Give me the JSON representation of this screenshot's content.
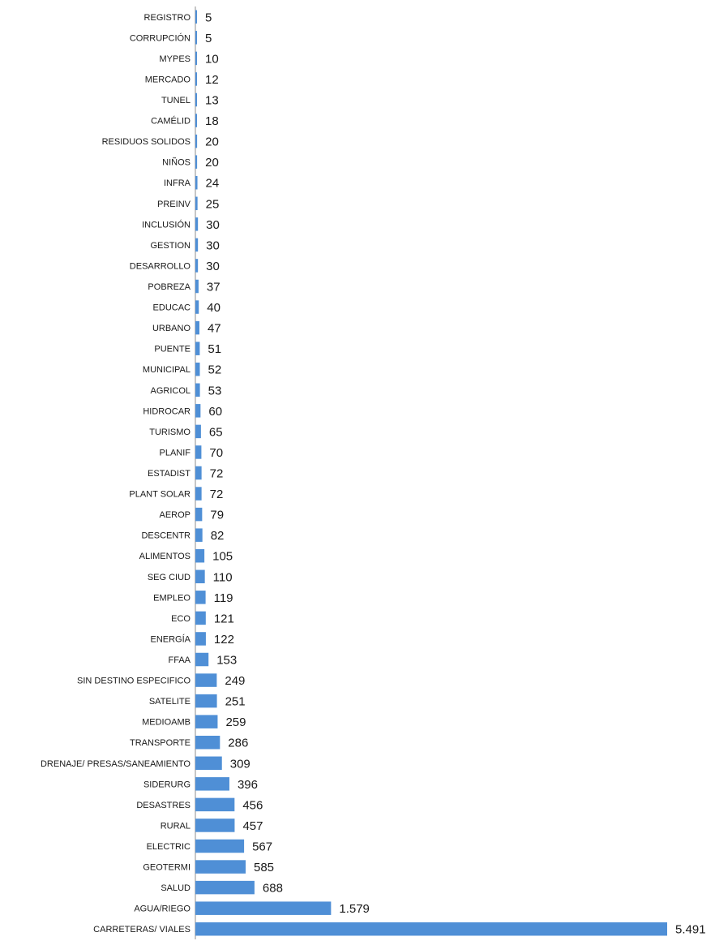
{
  "chart_data": {
    "type": "bar",
    "orientation": "horizontal",
    "title": "",
    "xlabel": "",
    "ylabel": "",
    "grid": false,
    "legend": "none",
    "bar_color": "#4f8fd6",
    "xlim": [
      0,
      5491
    ],
    "categories": [
      "REGISTRO",
      "CORRUPCIÓN",
      "MYPES",
      "MERCADO",
      "TUNEL",
      "CAMÉLID",
      "RESIDUOS SOLIDOS",
      "NIÑOS",
      "INFRA",
      "PREINV",
      "INCLUSIÓN",
      "GESTION",
      "DESARROLLO",
      "POBREZA",
      "EDUCAC",
      "URBANO",
      "PUENTE",
      "MUNICIPAL",
      "AGRICOL",
      "HIDROCAR",
      "TURISMO",
      "PLANIF",
      "ESTADIST",
      "PLANT SOLAR",
      "AEROP",
      "DESCENTR",
      "ALIMENTOS",
      "SEG CIUD",
      "EMPLEO",
      "ECO",
      "ENERGÍA",
      "FFAA",
      "SIN DESTINO ESPECIFICO",
      "SATELITE",
      "MEDIOAMB",
      "TRANSPORTE",
      "DRENAJE/ PRESAS/SANEAMIENTO",
      "SIDERURG",
      "DESASTRES",
      "RURAL",
      "ELECTRIC",
      "GEOTERMI",
      "SALUD",
      "AGUA/RIEGO",
      "CARRETERAS/ VIALES"
    ],
    "values": [
      5,
      5,
      10,
      12,
      13,
      18,
      20,
      20,
      24,
      25,
      30,
      30,
      30,
      37,
      40,
      47,
      51,
      52,
      53,
      60,
      65,
      70,
      72,
      72,
      79,
      82,
      105,
      110,
      119,
      121,
      122,
      153,
      249,
      251,
      259,
      286,
      309,
      396,
      456,
      457,
      567,
      585,
      688,
      1579,
      5491
    ],
    "value_labels": [
      "5",
      "5",
      "10",
      "12",
      "13",
      "18",
      "20",
      "20",
      "24",
      "25",
      "30",
      "30",
      "30",
      "37",
      "40",
      "47",
      "51",
      "52",
      "53",
      "60",
      "65",
      "70",
      "72",
      "72",
      "79",
      "82",
      "105",
      "110",
      "119",
      "121",
      "122",
      "153",
      "249",
      "251",
      "259",
      "286",
      "309",
      "396",
      "456",
      "457",
      "567",
      "585",
      "688",
      "1.579",
      "5.491"
    ]
  }
}
